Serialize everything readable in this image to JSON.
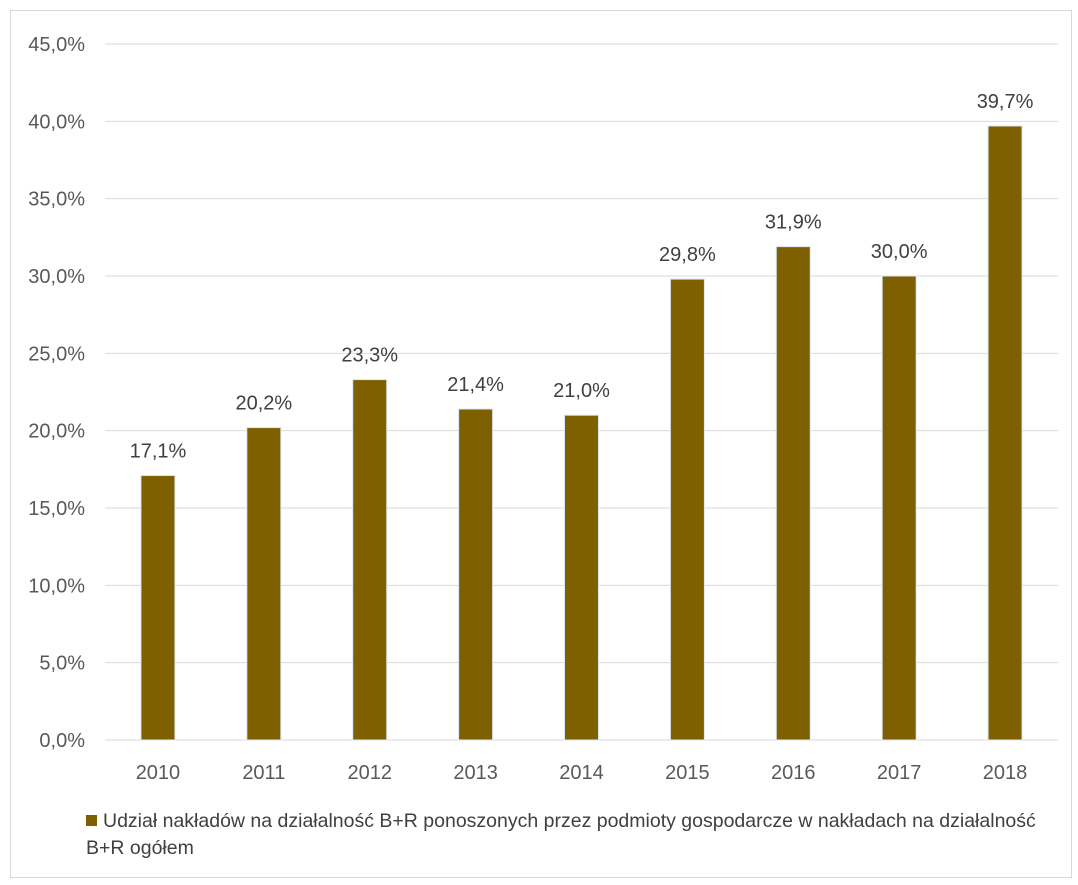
{
  "chart_data": {
    "type": "bar",
    "categories": [
      "2010",
      "2011",
      "2012",
      "2013",
      "2014",
      "2015",
      "2016",
      "2017",
      "2018"
    ],
    "series": [
      {
        "name": "Udział nakładów na działalność B+R ponoszonych przez podmioty gospodarcze w nakładach na działalność B+R ogółem",
        "values": [
          17.1,
          20.2,
          23.3,
          21.4,
          21.0,
          29.8,
          31.9,
          30.0,
          39.7
        ],
        "data_labels": [
          "17,1%",
          "20,2%",
          "23,3%",
          "21,4%",
          "21,0%",
          "29,8%",
          "31,9%",
          "30,0%",
          "39,7%"
        ],
        "color": "#7f6000"
      }
    ],
    "ylim": [
      0,
      45
    ],
    "y_ticks": [
      0,
      5,
      10,
      15,
      20,
      25,
      30,
      35,
      40,
      45
    ],
    "y_tick_labels": [
      "0,0%",
      "5,0%",
      "10,0%",
      "15,0%",
      "20,0%",
      "25,0%",
      "30,0%",
      "35,0%",
      "40,0%",
      "45,0%"
    ],
    "title": "",
    "xlabel": "",
    "ylabel": "",
    "grid": true,
    "legend_position": "bottom-left",
    "colors": {
      "gridline": "#d9d9d9",
      "tick_text": "#595959",
      "label_text": "#404040"
    }
  }
}
